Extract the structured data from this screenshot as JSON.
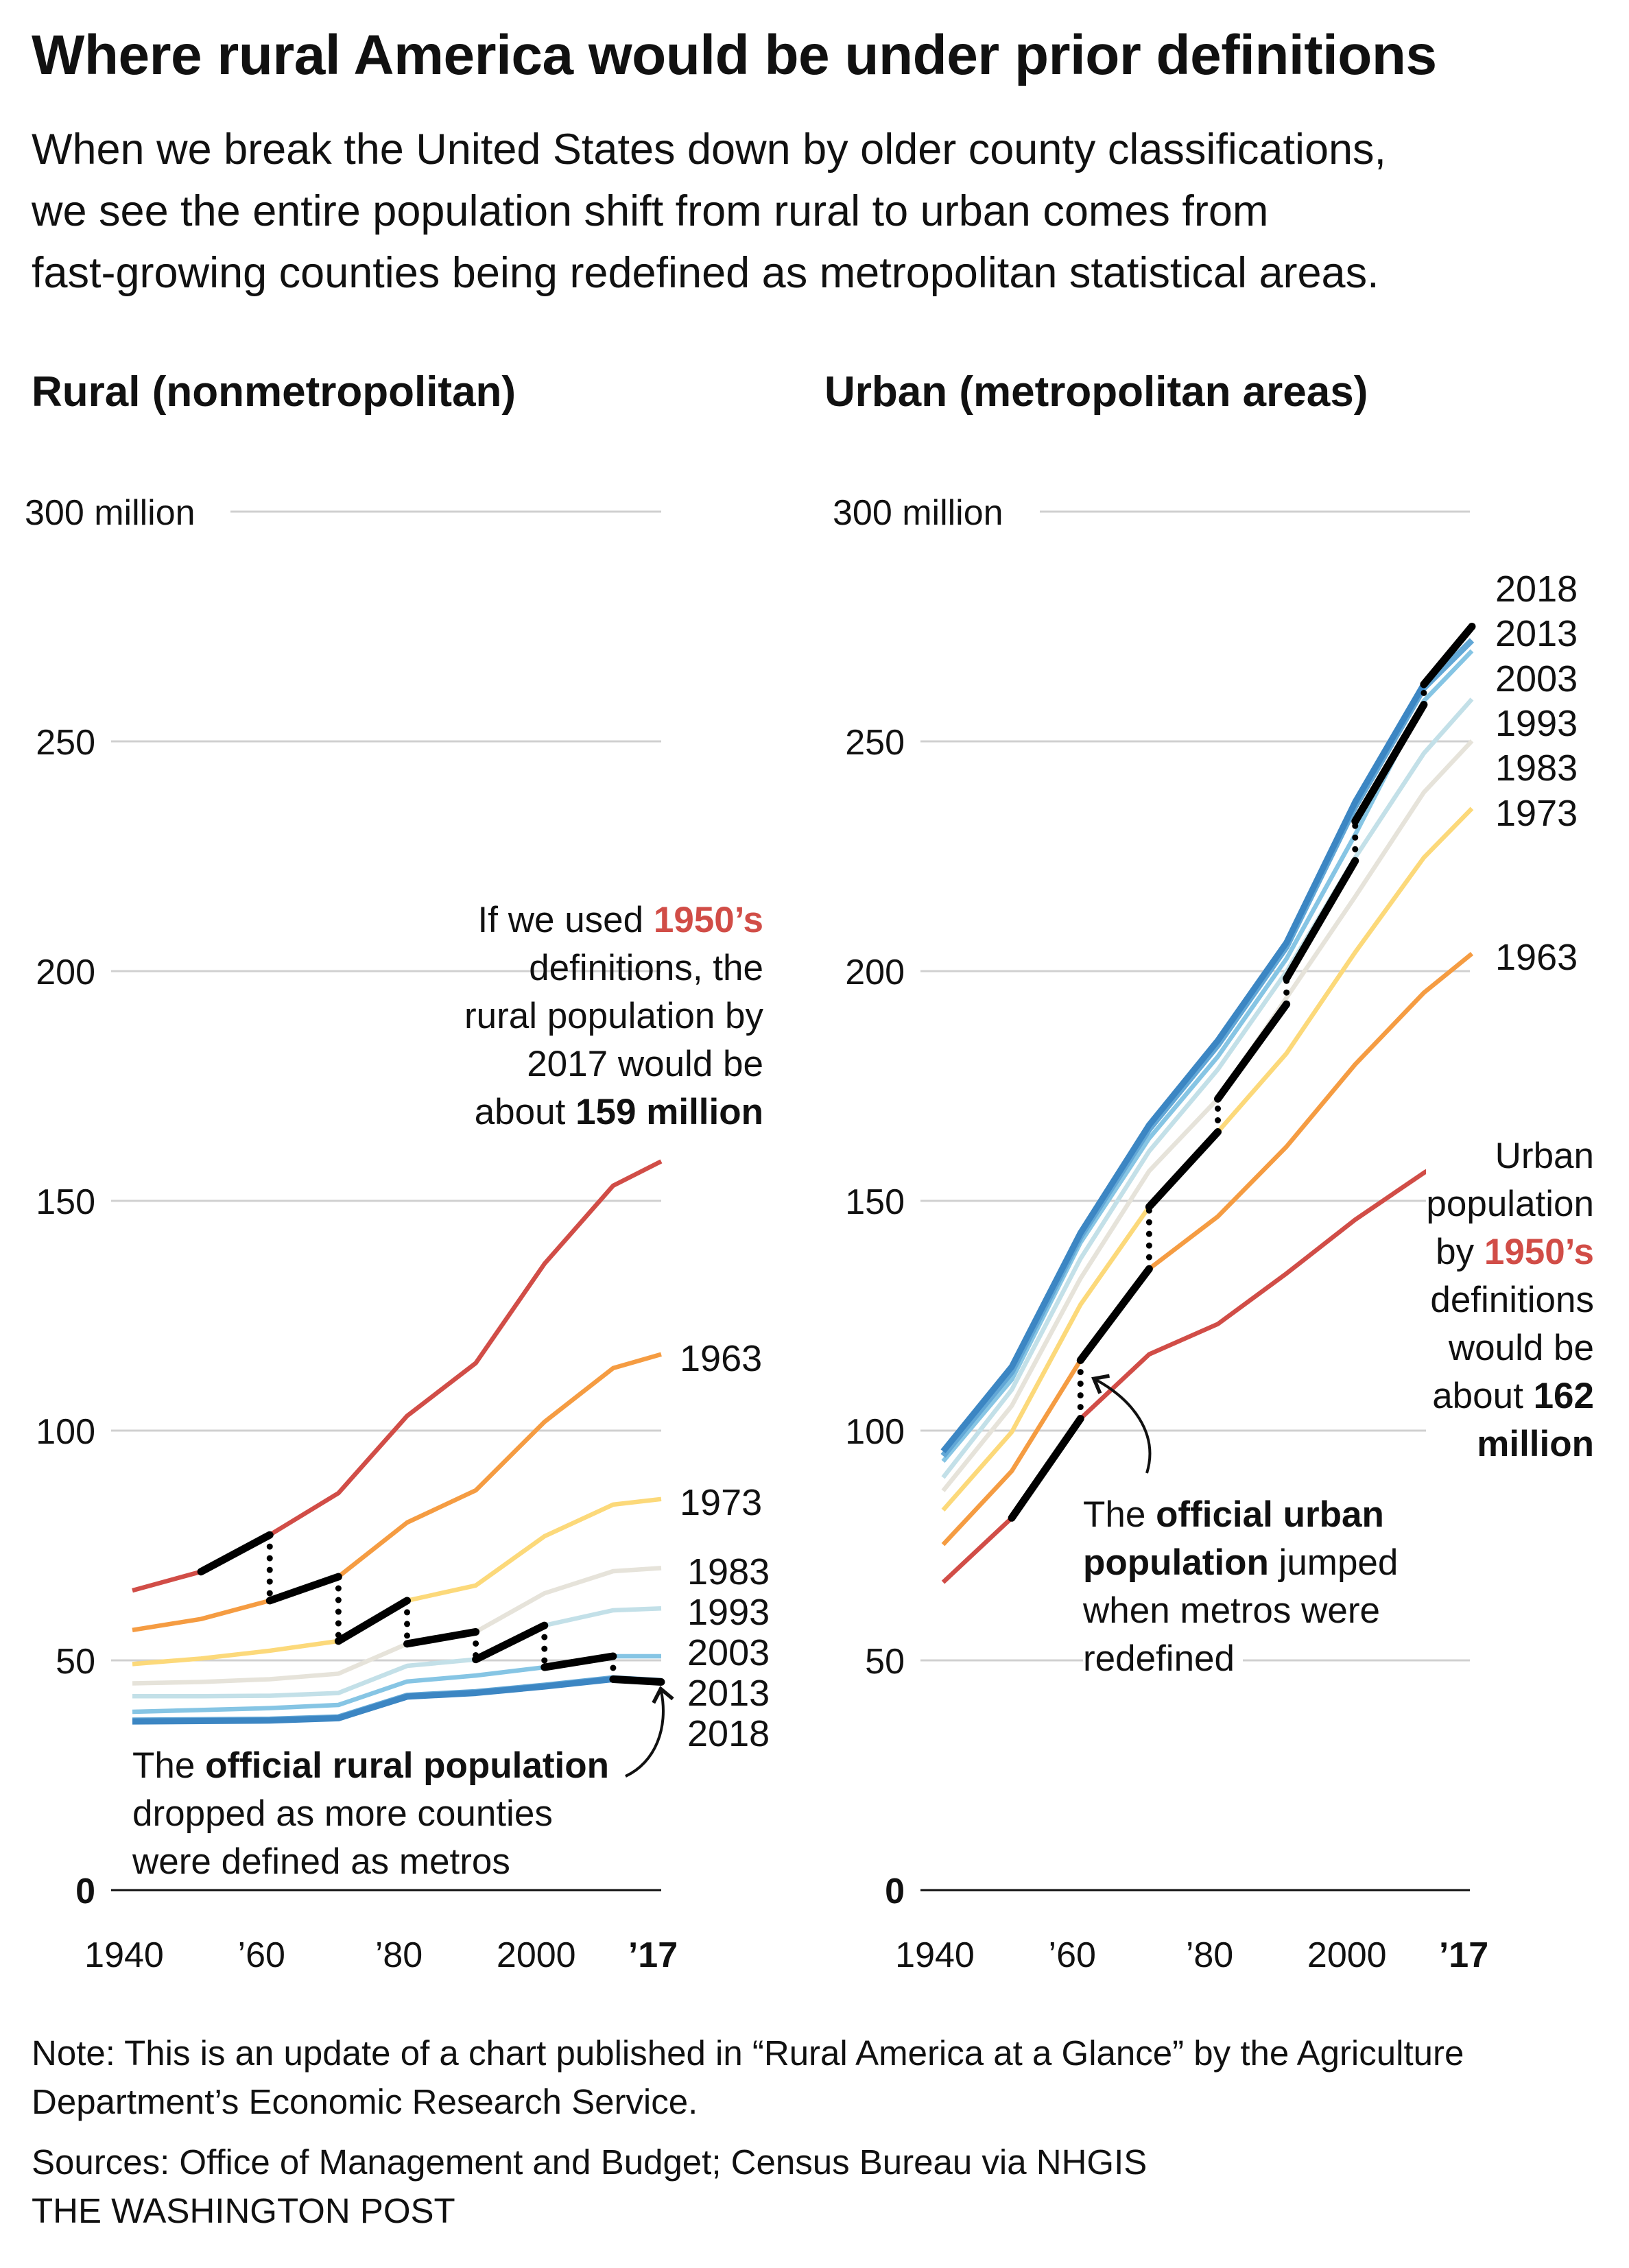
{
  "header": {
    "title": "Where rural America would be under prior definitions",
    "subtitle_lines": [
      "When we break the United States down by older county classifications,",
      "we see the entire population shift from rural to urban comes from",
      "fast-growing counties being redefined as metropolitan statistical areas."
    ]
  },
  "colors": {
    "1950": "#d14d47",
    "1963": "#f59c42",
    "1973": "#fcd97a",
    "1983": "#e6e3da",
    "1993": "#c3e0e8",
    "2003": "#86c5e4",
    "2013": "#62a7d6",
    "2018": "#3c86c3",
    "official": "#000000",
    "grid": "#d0d0d0"
  },
  "chart_data": [
    {
      "type": "line",
      "title": "Rural (nonmetropolitan)",
      "ylim": [
        0,
        300
      ],
      "xlim": [
        1940,
        2017
      ],
      "grid": true,
      "y_ticks": [
        0,
        50,
        100,
        150,
        200,
        250,
        300
      ],
      "y_tick_labels": [
        "0",
        "50",
        "100",
        "150",
        "200",
        "250",
        "300 million"
      ],
      "x_ticks": [
        1940,
        1960,
        1980,
        2000,
        2017
      ],
      "x_tick_labels": [
        "1940",
        "’60",
        "’80",
        "2000",
        "’17"
      ],
      "x": [
        1940,
        1950,
        1960,
        1970,
        1980,
        1990,
        2000,
        2010,
        2017
      ],
      "series": [
        {
          "key": "1950",
          "name": "",
          "values": [
            65.2,
            69.3,
            77.3,
            86.4,
            103.2,
            114.7,
            136.3,
            153.3,
            158.6
          ]
        },
        {
          "key": "1963",
          "name": "1963",
          "values": [
            56.6,
            59.0,
            63.0,
            68.2,
            80.0,
            87.0,
            101.9,
            113.6,
            116.6
          ]
        },
        {
          "key": "1973",
          "name": "1973",
          "values": [
            49.2,
            50.4,
            52.1,
            54.2,
            63.0,
            66.3,
            77.0,
            83.9,
            85.1
          ]
        },
        {
          "key": "1983",
          "name": "1983",
          "values": [
            45.0,
            45.3,
            45.9,
            47.1,
            53.6,
            56.2,
            64.6,
            69.4,
            70.1
          ]
        },
        {
          "key": "1993",
          "name": "1993",
          "values": [
            42.2,
            42.2,
            42.3,
            42.9,
            48.8,
            50.2,
            57.6,
            60.9,
            61.3
          ]
        },
        {
          "key": "2003",
          "name": "2003",
          "values": [
            38.8,
            39.2,
            39.6,
            40.3,
            45.4,
            46.7,
            48.5,
            50.9,
            50.9
          ]
        },
        {
          "key": "2013",
          "name": "2013",
          "values": [
            36.9,
            37.0,
            37.1,
            37.6,
            42.3,
            43.1,
            44.5,
            46.1,
            45.5
          ]
        },
        {
          "key": "2018",
          "name": "2018",
          "values": [
            36.7,
            36.8,
            36.9,
            37.4,
            42.1,
            42.9,
            44.3,
            45.9,
            45.3
          ]
        }
      ],
      "official_segments": [
        {
          "x": [
            1950,
            1960
          ],
          "y": [
            69.3,
            77.3
          ]
        },
        {
          "x": [
            1960,
            1970
          ],
          "y": [
            63.0,
            68.2
          ]
        },
        {
          "x": [
            1970,
            1980
          ],
          "y": [
            54.2,
            63.0
          ]
        },
        {
          "x": [
            1980,
            1990
          ],
          "y": [
            53.6,
            56.2
          ]
        },
        {
          "x": [
            1990,
            2000
          ],
          "y": [
            50.2,
            57.6
          ]
        },
        {
          "x": [
            2000,
            2010
          ],
          "y": [
            48.5,
            50.9
          ]
        },
        {
          "x": [
            2010,
            2017
          ],
          "y": [
            45.9,
            45.3
          ]
        }
      ],
      "annotations": {
        "top": {
          "lines": [
            {
              "a": "If we used ",
              "red": "1950’s",
              "b": ""
            },
            {
              "a": "definitions, the",
              "red": "",
              "b": ""
            },
            {
              "a": "rural population by",
              "red": "",
              "b": ""
            },
            {
              "a": "2017 would be",
              "red": "",
              "b": ""
            },
            {
              "a": "about ",
              "bold": "159 million"
            }
          ]
        },
        "bottom": {
          "lines": [
            {
              "a": "The ",
              "bold": "official rural population"
            },
            {
              "a": "dropped as more counties",
              "bold": ""
            },
            {
              "a": "were defined as metros",
              "bold": ""
            }
          ]
        }
      }
    },
    {
      "type": "line",
      "title": "Urban (metropolitan areas)",
      "ylim": [
        0,
        300
      ],
      "xlim": [
        1940,
        2017
      ],
      "grid": true,
      "y_ticks": [
        0,
        50,
        100,
        150,
        200,
        250,
        300
      ],
      "y_tick_labels": [
        "0",
        "50",
        "100",
        "150",
        "200",
        "250",
        "300 million"
      ],
      "x_ticks": [
        1940,
        1960,
        1980,
        2000,
        2017
      ],
      "x_tick_labels": [
        "1940",
        "’60",
        "’80",
        "2000",
        "’17"
      ],
      "x": [
        1940,
        1950,
        1960,
        1970,
        1980,
        1990,
        2000,
        2010,
        2017
      ],
      "series": [
        {
          "key": "1950",
          "name": "",
          "values": [
            67.0,
            81.0,
            102.6,
            116.6,
            123.2,
            134.2,
            145.9,
            156.1,
            162.0
          ]
        },
        {
          "key": "1963",
          "name": "1963",
          "values": [
            75.2,
            91.2,
            115.3,
            135.2,
            146.6,
            161.8,
            179.7,
            195.3,
            203.8
          ]
        },
        {
          "key": "1973",
          "name": "1973",
          "values": [
            82.7,
            99.7,
            127.4,
            148.7,
            165.0,
            182.1,
            204.1,
            224.7,
            235.4
          ]
        },
        {
          "key": "1983",
          "name": "1983",
          "values": [
            86.9,
            105.4,
            133.1,
            156.5,
            172.2,
            194.2,
            216.2,
            238.9,
            250.1
          ]
        },
        {
          "key": "1993",
          "name": "1993",
          "values": [
            89.8,
            108.9,
            137.4,
            160.8,
            178.6,
            199.9,
            224.7,
            247.4,
            259.2
          ]
        },
        {
          "key": "2003",
          "name": "2003",
          "values": [
            93.3,
            111.1,
            140.9,
            163.6,
            181.4,
            202.7,
            229.7,
            258.8,
            269.7
          ]
        },
        {
          "key": "2013",
          "name": "2013",
          "values": [
            94.5,
            112.8,
            142.2,
            165.6,
            183.9,
            205.3,
            235.8,
            261.6,
            272.0
          ]
        },
        {
          "key": "2018",
          "name": "2018",
          "values": [
            95.5,
            113.9,
            143.0,
            166.5,
            184.9,
            206.2,
            236.8,
            262.4,
            275.0
          ]
        }
      ],
      "official_segments": [
        {
          "x": [
            1950,
            1960
          ],
          "y": [
            81.0,
            102.6
          ]
        },
        {
          "x": [
            1960,
            1970
          ],
          "y": [
            115.3,
            135.2
          ]
        },
        {
          "x": [
            1970,
            1980
          ],
          "y": [
            148.7,
            165.0
          ]
        },
        {
          "x": [
            1980,
            1990
          ],
          "y": [
            172.2,
            192.8
          ]
        },
        {
          "x": [
            1990,
            2000
          ],
          "y": [
            198.4,
            224.0
          ]
        },
        {
          "x": [
            2000,
            2010
          ],
          "y": [
            232.6,
            258.0
          ]
        },
        {
          "x": [
            2010,
            2017
          ],
          "y": [
            262.4,
            275.0
          ]
        }
      ],
      "annotations": {
        "middle": {
          "lines": [
            {
              "a": "The ",
              "bold": "official urban",
              "b": ""
            },
            {
              "a": "",
              "bold": "population",
              "b": " jumped"
            },
            {
              "a": "when metros were",
              "bold": "",
              "b": ""
            },
            {
              "a": "redefined",
              "bold": "",
              "b": ""
            }
          ]
        },
        "right": {
          "lines": [
            {
              "a": "Urban",
              "red": "",
              "bold": ""
            },
            {
              "a": "population",
              "red": "",
              "bold": ""
            },
            {
              "a": "by ",
              "red": "1950’s",
              "bold": ""
            },
            {
              "a": "definitions",
              "red": "",
              "bold": ""
            },
            {
              "a": "would be",
              "red": "",
              "bold": ""
            },
            {
              "a": "about ",
              "red": "",
              "bold": "162"
            },
            {
              "a": "",
              "red": "",
              "bold": "million"
            }
          ]
        }
      }
    }
  ],
  "footer": {
    "note_lines": [
      "Note: This is an update of a chart published in “Rural America at a Glance” by the Agriculture",
      "Department’s Economic Research Service."
    ],
    "sources": "Sources: Office of Management and Budget; Census Bureau via NHGIS",
    "credit": "THE WASHINGTON POST"
  }
}
